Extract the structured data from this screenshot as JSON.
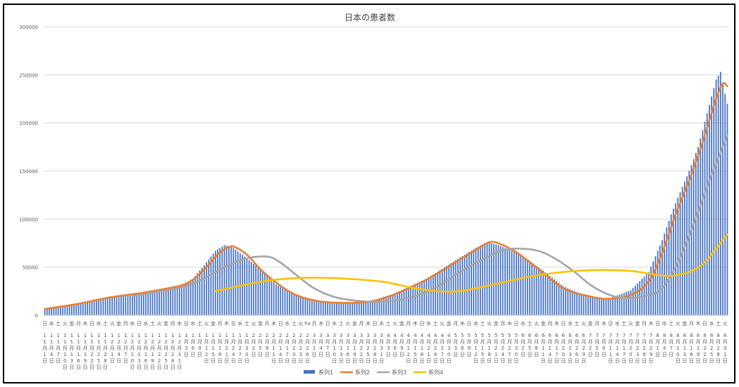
{
  "chart_data": {
    "type": "bar",
    "title": "日本の患者数",
    "xlabel": "",
    "ylabel": "",
    "ylim": [
      0,
      300000
    ],
    "yticks": [
      0,
      50000,
      100000,
      150000,
      200000,
      250000,
      300000
    ],
    "grid": true,
    "legend_position": "bottom",
    "x_start": "2020-11-01",
    "x_end": "2021-09-01",
    "x_tick_labels": [
      {
        "weekday": "日",
        "date": "11月1日"
      },
      {
        "weekday": "水",
        "date": "11月4日"
      },
      {
        "weekday": "土",
        "date": "11月7日"
      },
      {
        "weekday": "火",
        "date": "11月10日"
      },
      {
        "weekday": "金",
        "date": "11月13日"
      },
      {
        "weekday": "月",
        "date": "11月16日"
      },
      {
        "weekday": "木",
        "date": "11月19日"
      },
      {
        "weekday": "日",
        "date": "11月22日"
      },
      {
        "weekday": "水",
        "date": "11月25日"
      },
      {
        "weekday": "土",
        "date": "11月28日"
      },
      {
        "weekday": "火",
        "date": "12月1日"
      },
      {
        "weekday": "金",
        "date": "12月4日"
      },
      {
        "weekday": "月",
        "date": "12月7日"
      },
      {
        "weekday": "木",
        "date": "12月10日"
      },
      {
        "weekday": "日",
        "date": "12月13日"
      },
      {
        "weekday": "水",
        "date": "12月16日"
      },
      {
        "weekday": "土",
        "date": "12月19日"
      },
      {
        "weekday": "火",
        "date": "12月22日"
      },
      {
        "weekday": "金",
        "date": "12月25日"
      },
      {
        "weekday": "月",
        "date": "12月28日"
      },
      {
        "weekday": "木",
        "date": "12月31日"
      },
      {
        "weekday": "日",
        "date": "1月3日"
      },
      {
        "weekday": "水",
        "date": "1月6日"
      },
      {
        "weekday": "土",
        "date": "1月9日"
      },
      {
        "weekday": "火",
        "date": "1月12日"
      },
      {
        "weekday": "金",
        "date": "1月15日"
      },
      {
        "weekday": "月",
        "date": "1月18日"
      },
      {
        "weekday": "木",
        "date": "1月21日"
      },
      {
        "weekday": "日",
        "date": "1月24日"
      },
      {
        "weekday": "水",
        "date": "1月27日"
      },
      {
        "weekday": "土",
        "date": "1月30日"
      },
      {
        "weekday": "火",
        "date": "2月2日"
      },
      {
        "weekday": "金",
        "date": "2月5日"
      },
      {
        "weekday": "月",
        "date": "2月8日"
      },
      {
        "weekday": "木",
        "date": "2月11日"
      },
      {
        "weekday": "日",
        "date": "2月14日"
      },
      {
        "weekday": "水",
        "date": "2月17日"
      },
      {
        "weekday": "土",
        "date": "2月20日"
      },
      {
        "weekday": "火",
        "date": "2月23日"
      },
      {
        "weekday": "ha",
        "date": "2月26日"
      },
      {
        "weekday": "月",
        "date": "3月1日"
      },
      {
        "weekday": "木",
        "date": "3月4日"
      },
      {
        "weekday": "日",
        "date": "3月7日"
      },
      {
        "weekday": "水",
        "date": "3月10日"
      },
      {
        "weekday": "土",
        "date": "3月13日"
      },
      {
        "weekday": "火",
        "date": "3月16日"
      },
      {
        "weekday": "金",
        "date": "3月19日"
      },
      {
        "weekday": "月",
        "date": "3月22日"
      },
      {
        "weekday": "木",
        "date": "3月25日"
      },
      {
        "weekday": "日",
        "date": "3月28日"
      },
      {
        "weekday": "水",
        "date": "3月31日"
      },
      {
        "weekday": "土",
        "date": "4月3日"
      },
      {
        "weekday": "火",
        "date": "4月6日"
      },
      {
        "weekday": "金",
        "date": "4月9日"
      },
      {
        "weekday": "月",
        "date": "4月12日"
      },
      {
        "weekday": "木",
        "date": "4月15日"
      },
      {
        "weekday": "日",
        "date": "4月18日"
      },
      {
        "weekday": "水",
        "date": "4月21日"
      },
      {
        "weekday": "土",
        "date": "4月24日"
      },
      {
        "weekday": "火",
        "date": "4月27日"
      },
      {
        "weekday": "金",
        "date": "4月30日"
      },
      {
        "weekday": "月",
        "date": "5月3日"
      },
      {
        "weekday": "木",
        "date": "5月6日"
      },
      {
        "weekday": "日",
        "date": "5月9日"
      },
      {
        "weekday": "水",
        "date": "5月12日"
      },
      {
        "weekday": "土",
        "date": "5月15日"
      },
      {
        "weekday": "火",
        "date": "5月18日"
      },
      {
        "weekday": "金",
        "date": "5月21日"
      },
      {
        "weekday": "月",
        "date": "5月24日"
      },
      {
        "weekday": "木",
        "date": "5月27日"
      },
      {
        "weekday": "日",
        "date": "5月30日"
      },
      {
        "weekday": "水",
        "date": "6月2日"
      },
      {
        "weekday": "土",
        "date": "6月5日"
      },
      {
        "weekday": "火",
        "date": "6月8日"
      },
      {
        "weekday": "金",
        "date": "6月11日"
      },
      {
        "weekday": "月",
        "date": "6月14日"
      },
      {
        "weekday": "木",
        "date": "6月17日"
      },
      {
        "weekday": "日",
        "date": "6月20日"
      },
      {
        "weekday": "水",
        "date": "6月23日"
      },
      {
        "weekday": "土",
        "date": "6月26日"
      },
      {
        "weekday": "火",
        "date": "6月29日"
      },
      {
        "weekday": "金",
        "date": "7月2日"
      },
      {
        "weekday": "月",
        "date": "7月5日"
      },
      {
        "weekday": "木",
        "date": "7月8日"
      },
      {
        "weekday": "日",
        "date": "7月11日"
      },
      {
        "weekday": "水",
        "date": "7月14日"
      },
      {
        "weekday": "土",
        "date": "7月17日"
      },
      {
        "weekday": "火",
        "date": "7月20日"
      },
      {
        "weekday": "金",
        "date": "7月23日"
      },
      {
        "weekday": "月",
        "date": "7月26日"
      },
      {
        "weekday": "木",
        "date": "7月29日"
      },
      {
        "weekday": "日",
        "date": "8月1日"
      },
      {
        "weekday": "水",
        "date": "8月4日"
      },
      {
        "weekday": "土",
        "date": "8月7日"
      },
      {
        "weekday": "火",
        "date": "8月10日"
      },
      {
        "weekday": "金",
        "date": "8月13日"
      },
      {
        "weekday": "月",
        "date": "8月16日"
      },
      {
        "weekday": "木",
        "date": "8月19日"
      },
      {
        "weekday": "日",
        "date": "8月22日"
      },
      {
        "weekday": "水",
        "date": "8月25日"
      },
      {
        "weekday": "土",
        "date": "8月28日"
      },
      {
        "weekday": "火",
        "date": "8月31日"
      }
    ],
    "series": [
      {
        "name": "系列1",
        "type": "bar",
        "color": "#4472c4",
        "points": [
          [
            "2020-11-01",
            6500
          ],
          [
            "2020-11-15",
            11000
          ],
          [
            "2020-11-30",
            18000
          ],
          [
            "2020-12-15",
            23000
          ],
          [
            "2020-12-31",
            30000
          ],
          [
            "2021-01-06",
            38000
          ],
          [
            "2021-01-12",
            55000
          ],
          [
            "2021-01-16",
            67000
          ],
          [
            "2021-01-20",
            73000
          ],
          [
            "2021-01-24",
            70000
          ],
          [
            "2021-01-29",
            61000
          ],
          [
            "2021-02-05",
            48000
          ],
          [
            "2021-02-12",
            32000
          ],
          [
            "2021-02-20",
            22000
          ],
          [
            "2021-02-28",
            15000
          ],
          [
            "2021-03-10",
            12000
          ],
          [
            "2021-03-25",
            14000
          ],
          [
            "2021-04-05",
            22000
          ],
          [
            "2021-04-20",
            38000
          ],
          [
            "2021-05-05",
            60000
          ],
          [
            "2021-05-12",
            70000
          ],
          [
            "2021-05-17",
            76000
          ],
          [
            "2021-05-22",
            73000
          ],
          [
            "2021-05-31",
            64000
          ],
          [
            "2021-06-10",
            48000
          ],
          [
            "2021-06-20",
            30000
          ],
          [
            "2021-07-01",
            19000
          ],
          [
            "2021-07-10",
            17000
          ],
          [
            "2021-07-20",
            26000
          ],
          [
            "2021-07-28",
            45000
          ],
          [
            "2021-08-03",
            78000
          ],
          [
            "2021-08-07",
            105000
          ],
          [
            "2021-08-11",
            128000
          ],
          [
            "2021-08-15",
            150000
          ],
          [
            "2021-08-19",
            175000
          ],
          [
            "2021-08-23",
            210000
          ],
          [
            "2021-08-27",
            245000
          ],
          [
            "2021-08-29",
            253000
          ],
          [
            "2021-08-30",
            240000
          ],
          [
            "2021-09-01",
            220000
          ]
        ]
      },
      {
        "name": "系列2",
        "type": "line",
        "color": "#ed7d31",
        "points": [
          [
            "2020-11-01",
            6500
          ],
          [
            "2020-11-15",
            11500
          ],
          [
            "2020-11-30",
            18500
          ],
          [
            "2020-12-15",
            23500
          ],
          [
            "2020-12-31",
            30500
          ],
          [
            "2021-01-06",
            37000
          ],
          [
            "2021-01-12",
            50000
          ],
          [
            "2021-01-17",
            63000
          ],
          [
            "2021-01-22",
            71000
          ],
          [
            "2021-01-25",
            70500
          ],
          [
            "2021-01-30",
            63000
          ],
          [
            "2021-02-05",
            48000
          ],
          [
            "2021-02-12",
            34000
          ],
          [
            "2021-02-20",
            22000
          ],
          [
            "2021-02-28",
            16000
          ],
          [
            "2021-03-10",
            13000
          ],
          [
            "2021-03-25",
            14000
          ],
          [
            "2021-04-05",
            21000
          ],
          [
            "2021-04-20",
            37000
          ],
          [
            "2021-05-05",
            58000
          ],
          [
            "2021-05-12",
            68000
          ],
          [
            "2021-05-18",
            76000
          ],
          [
            "2021-05-23",
            74000
          ],
          [
            "2021-05-31",
            64000
          ],
          [
            "2021-06-10",
            46000
          ],
          [
            "2021-06-20",
            28000
          ],
          [
            "2021-07-01",
            20000
          ],
          [
            "2021-07-10",
            17000
          ],
          [
            "2021-07-20",
            21000
          ],
          [
            "2021-07-28",
            35000
          ],
          [
            "2021-08-03",
            65000
          ],
          [
            "2021-08-09",
            105000
          ],
          [
            "2021-08-15",
            140000
          ],
          [
            "2021-08-21",
            180000
          ],
          [
            "2021-08-27",
            225000
          ],
          [
            "2021-08-30",
            241000
          ],
          [
            "2021-09-01",
            238000
          ]
        ]
      },
      {
        "name": "系列3",
        "type": "line",
        "color": "#a5a5a5",
        "points": [
          [
            "2020-12-10",
            20000
          ],
          [
            "2020-12-20",
            24000
          ],
          [
            "2021-01-01",
            29000
          ],
          [
            "2021-01-10",
            37000
          ],
          [
            "2021-01-20",
            50000
          ],
          [
            "2021-01-30",
            59000
          ],
          [
            "2021-02-05",
            61000
          ],
          [
            "2021-02-10",
            60000
          ],
          [
            "2021-02-15",
            53000
          ],
          [
            "2021-02-22",
            40000
          ],
          [
            "2021-03-01",
            28000
          ],
          [
            "2021-03-10",
            19000
          ],
          [
            "2021-03-20",
            15000
          ],
          [
            "2021-03-28",
            14000
          ],
          [
            "2021-04-05",
            15000
          ],
          [
            "2021-04-15",
            20000
          ],
          [
            "2021-04-25",
            30000
          ],
          [
            "2021-05-05",
            45000
          ],
          [
            "2021-05-15",
            58000
          ],
          [
            "2021-05-25",
            68000
          ],
          [
            "2021-06-03",
            69000
          ],
          [
            "2021-06-10",
            66000
          ],
          [
            "2021-06-17",
            58000
          ],
          [
            "2021-06-25",
            45000
          ],
          [
            "2021-07-03",
            30000
          ],
          [
            "2021-07-12",
            20000
          ],
          [
            "2021-07-20",
            18000
          ],
          [
            "2021-07-28",
            21000
          ],
          [
            "2021-08-03",
            28000
          ],
          [
            "2021-08-10",
            55000
          ],
          [
            "2021-08-17",
            95000
          ],
          [
            "2021-08-24",
            140000
          ],
          [
            "2021-08-30",
            175000
          ],
          [
            "2021-09-01",
            187000
          ]
        ]
      },
      {
        "name": "系列4",
        "type": "line",
        "color": "#ffc000",
        "points": [
          [
            "2021-01-16",
            25000
          ],
          [
            "2021-01-30",
            32000
          ],
          [
            "2021-02-12",
            37000
          ],
          [
            "2021-02-28",
            39000
          ],
          [
            "2021-03-15",
            38000
          ],
          [
            "2021-03-31",
            35000
          ],
          [
            "2021-04-15",
            28000
          ],
          [
            "2021-04-25",
            25000
          ],
          [
            "2021-05-05",
            25000
          ],
          [
            "2021-05-20",
            32000
          ],
          [
            "2021-06-05",
            40000
          ],
          [
            "2021-06-20",
            45000
          ],
          [
            "2021-07-05",
            47000
          ],
          [
            "2021-07-20",
            46000
          ],
          [
            "2021-08-05",
            41000
          ],
          [
            "2021-08-15",
            45000
          ],
          [
            "2021-08-22",
            55000
          ],
          [
            "2021-08-29",
            75000
          ],
          [
            "2021-09-01",
            84000
          ]
        ]
      }
    ]
  }
}
